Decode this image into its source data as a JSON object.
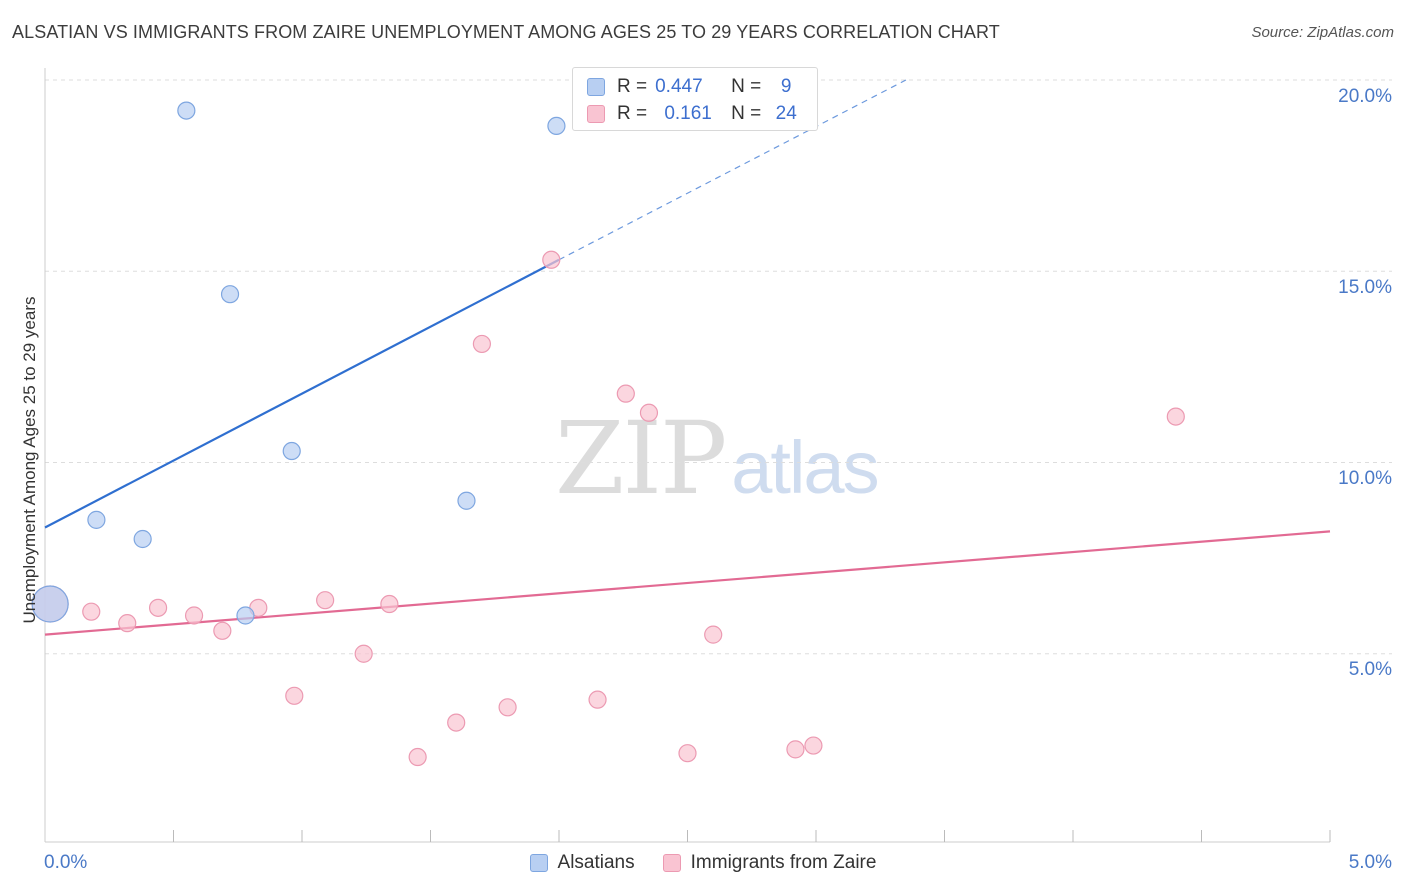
{
  "title": "ALSATIAN VS IMMIGRANTS FROM ZAIRE UNEMPLOYMENT AMONG AGES 25 TO 29 YEARS CORRELATION CHART",
  "source": "Source: ZipAtlas.com",
  "watermark": {
    "zip": "ZIP",
    "atlas": "atlas"
  },
  "legend_top": {
    "rows": [
      {
        "r_label": "R =",
        "r_value": "0.447",
        "n_label": "N =",
        "n_value": "9"
      },
      {
        "r_label": "R =",
        "r_value": "0.161",
        "n_label": "N =",
        "n_value": "24"
      }
    ]
  },
  "colors": {
    "alsatian_fill": "#b8cff2",
    "alsatian_stroke": "#7ea6e0",
    "alsatian_line": "#2f6fd0",
    "zaire_fill": "#f9c4d2",
    "zaire_stroke": "#ec9ab2",
    "zaire_line": "#e26a93",
    "tick_text": "#4a79c7",
    "grid": "#dddddd"
  },
  "chart_data": {
    "type": "scatter",
    "title": "ALSATIAN VS IMMIGRANTS FROM ZAIRE UNEMPLOYMENT AMONG AGES 25 TO 29 YEARS CORRELATION CHART",
    "xlabel": "",
    "ylabel": "Unemployment Among Ages 25 to 29 years",
    "xlim": [
      0,
      5
    ],
    "ylim": [
      0,
      20
    ],
    "x_tick_labels": [
      "0.0%",
      "5.0%"
    ],
    "y_ticks": [
      5,
      10,
      15,
      20
    ],
    "y_tick_labels": [
      "5.0%",
      "10.0%",
      "15.0%",
      "20.0%"
    ],
    "grid": true,
    "legend_position": "bottom-center",
    "series": [
      {
        "name": "Alsatians",
        "r": 0.447,
        "n": 9,
        "points": [
          {
            "x": 0.02,
            "y": 6.3,
            "large": true
          },
          {
            "x": 0.2,
            "y": 8.5
          },
          {
            "x": 0.38,
            "y": 8.0
          },
          {
            "x": 0.55,
            "y": 19.2
          },
          {
            "x": 0.72,
            "y": 14.4
          },
          {
            "x": 0.78,
            "y": 6.0
          },
          {
            "x": 0.96,
            "y": 10.3
          },
          {
            "x": 1.64,
            "y": 9.0
          },
          {
            "x": 1.99,
            "y": 18.8
          }
        ],
        "trend": {
          "x0": 0.0,
          "y0": 8.3,
          "x1": 2.0,
          "y1": 15.3,
          "dash_to_x": 3.35,
          "dash_to_y": 20.0
        }
      },
      {
        "name": "Immigrants from Zaire",
        "r": 0.161,
        "n": 24,
        "points": [
          {
            "x": 0.02,
            "y": 6.3,
            "large": true
          },
          {
            "x": 0.18,
            "y": 6.1
          },
          {
            "x": 0.32,
            "y": 5.8
          },
          {
            "x": 0.44,
            "y": 6.2
          },
          {
            "x": 0.58,
            "y": 6.0
          },
          {
            "x": 0.69,
            "y": 5.6
          },
          {
            "x": 0.83,
            "y": 6.2
          },
          {
            "x": 0.97,
            "y": 3.9
          },
          {
            "x": 1.09,
            "y": 6.4
          },
          {
            "x": 1.24,
            "y": 5.0
          },
          {
            "x": 1.34,
            "y": 6.3
          },
          {
            "x": 1.45,
            "y": 2.3
          },
          {
            "x": 1.6,
            "y": 3.2
          },
          {
            "x": 1.7,
            "y": 13.1
          },
          {
            "x": 1.8,
            "y": 3.6
          },
          {
            "x": 1.97,
            "y": 15.3
          },
          {
            "x": 2.15,
            "y": 3.8
          },
          {
            "x": 2.26,
            "y": 11.8
          },
          {
            "x": 2.35,
            "y": 11.3
          },
          {
            "x": 2.5,
            "y": 2.4
          },
          {
            "x": 2.6,
            "y": 5.5
          },
          {
            "x": 2.92,
            "y": 2.5
          },
          {
            "x": 2.99,
            "y": 2.6
          },
          {
            "x": 4.4,
            "y": 11.2
          }
        ],
        "trend": {
          "x0": 0.0,
          "y0": 5.5,
          "x1": 5.0,
          "y1": 8.2
        }
      }
    ]
  }
}
